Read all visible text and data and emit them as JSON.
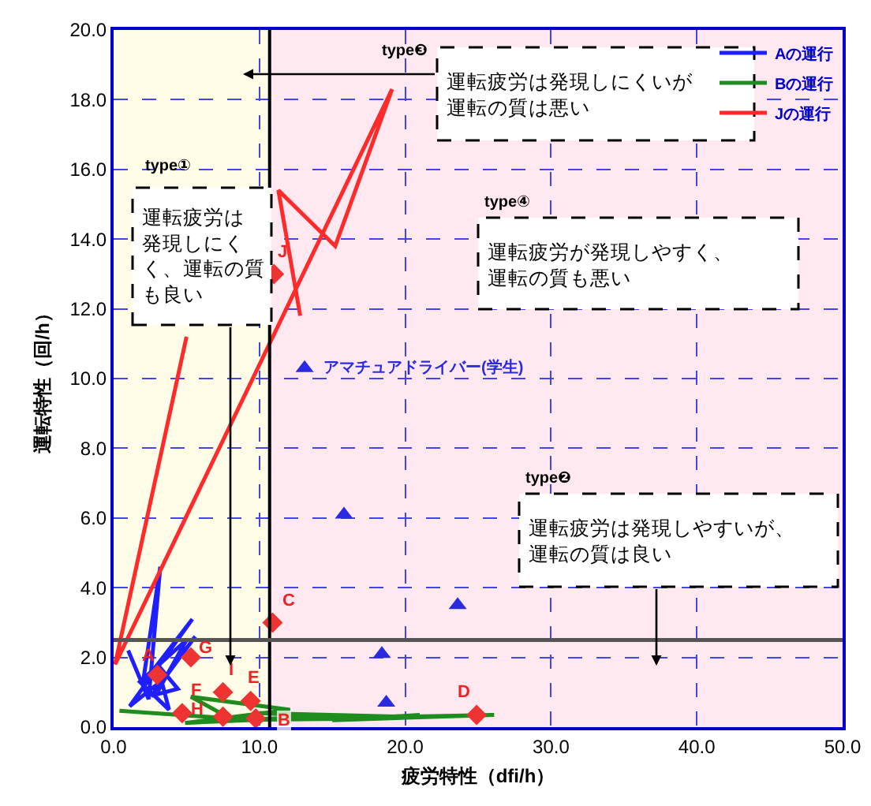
{
  "chart_data": {
    "type": "line",
    "xlabel": "疲労特性（dfi/h）",
    "ylabel": "運転特性（回/h）",
    "xlim": [
      0,
      50
    ],
    "xticks": [
      {
        "value": 0,
        "label": "0.0"
      },
      {
        "value": 10,
        "label": "10.0"
      },
      {
        "value": 20,
        "label": "20.0"
      },
      {
        "value": 30,
        "label": "30.0"
      },
      {
        "value": 40,
        "label": "40.0"
      },
      {
        "value": 50,
        "label": "50.0"
      }
    ],
    "ylim": [
      0,
      20
    ],
    "yticks": [
      {
        "value": 0,
        "label": "0.0"
      },
      {
        "value": 2,
        "label": "2.0"
      },
      {
        "value": 4,
        "label": "4.0"
      },
      {
        "value": 6,
        "label": "6.0"
      },
      {
        "value": 8,
        "label": "8.0"
      },
      {
        "value": 10,
        "label": "10.0"
      },
      {
        "value": 12,
        "label": "12.0"
      },
      {
        "value": 14,
        "label": "14.0"
      },
      {
        "value": 16,
        "label": "16.0"
      },
      {
        "value": 18,
        "label": "18.0"
      },
      {
        "value": 20,
        "label": "20.0"
      }
    ],
    "grid": true,
    "legend": "top right",
    "line_style": "solid",
    "series": [
      {
        "name": "Aの運行",
        "marker": "none",
        "color": "#1f1fff",
        "x": [
          1.0,
          2.4,
          3.2,
          2.0,
          5.4,
          1.1,
          3.5,
          5.6,
          2.6,
          4.4,
          3.0,
          3.8,
          1.8,
          5.0,
          3.0
        ],
        "values": [
          2.2,
          0.8,
          4.6,
          1.25,
          3.1,
          0.6,
          1.4,
          2.6,
          0.9,
          1.1,
          1.8,
          0.5,
          1.3,
          2.5,
          1.0
        ]
      },
      {
        "name": "Bの運行",
        "marker": "none",
        "color": "#1e8c1e",
        "x": [
          0.4,
          8,
          5.3,
          12.1,
          4.9,
          15,
          7,
          18,
          10,
          20,
          26.1,
          15,
          21
        ],
        "values": [
          0.47,
          0.25,
          0.87,
          0.5,
          0.12,
          0.3,
          0.2,
          0.25,
          0.4,
          0.3,
          0.35,
          0.2,
          0.35
        ]
      },
      {
        "name": "Jの運行",
        "marker": "none",
        "color": "#ff2a2a",
        "x": [
          5.0,
          0.1,
          19.1,
          15.2,
          11.3,
          12.8
        ],
        "values": [
          11.2,
          1.8,
          18.3,
          13.8,
          15.4,
          11.8
        ]
      },
      {
        "type": "scatter",
        "marker": "diamond",
        "color": "#ee3333",
        "x": [
          3.0,
          9.75,
          10.9,
          24.9,
          9.4,
          4.7,
          5.3,
          7.5,
          7.5,
          11.0
        ],
        "values": [
          1.5,
          0.25,
          3.0,
          0.35,
          0.75,
          0.4,
          2.0,
          0.3,
          1.0,
          13.0
        ]
      },
      {
        "name": "アマチュアドライバー(学生)",
        "type": "scatter",
        "marker": "triangle",
        "color": "#2a2ae0",
        "x": [
          13.1,
          15.8,
          23.6,
          18.4,
          18.7
        ],
        "values": [
          10.3,
          6.1,
          3.5,
          2.1,
          0.7
        ]
      }
    ],
    "bands": [
      {
        "axis": "x",
        "from": 0,
        "to": 10.7,
        "color": "#fffde8"
      },
      {
        "axis": "x",
        "from": 10.7,
        "to": 50,
        "color": "#ffe8f0"
      }
    ],
    "ref_lines": [
      {
        "axis": "x",
        "value": 10.7,
        "color": "#000000"
      },
      {
        "axis": "y",
        "value": 2.5,
        "color": "#555555"
      }
    ],
    "annotations": [
      {
        "text": "A",
        "x": 3.0,
        "y": 1.5
      },
      {
        "text": "B",
        "x": 9.75,
        "y": 0.25
      },
      {
        "text": "C",
        "x": 10.9,
        "y": 3.0
      },
      {
        "text": "D",
        "x": 24.9,
        "y": 0.35
      },
      {
        "text": "E",
        "x": 9.4,
        "y": 0.75
      },
      {
        "text": "F",
        "x": 4.7,
        "y": 0.4
      },
      {
        "text": "G",
        "x": 5.3,
        "y": 2.0
      },
      {
        "text": "H",
        "x": 7.5,
        "y": 0.3
      },
      {
        "text": "I",
        "x": 7.5,
        "y": 1.0
      },
      {
        "text": "J",
        "x": 11.0,
        "y": 13.0
      },
      "type①",
      "運転疲労は発現しにくく、運転の質も良い",
      "type❸",
      "運転疲労は発現しにくいが運転の質は悪い",
      "type④",
      "運転疲労が発現しやすく、運転の質も悪い",
      "type❷",
      "運転疲労は発現しやすいが、運転の質は良い"
    ]
  }
}
